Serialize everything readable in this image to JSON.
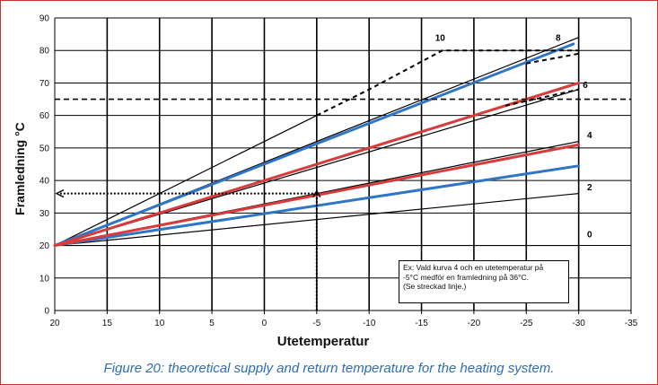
{
  "chart_data": {
    "type": "line",
    "xlabel": "Utetemperatur",
    "ylabel": "Framledning °C",
    "xlim": [
      20,
      -35
    ],
    "ylim": [
      0,
      90
    ],
    "x_ticks": [
      "20",
      "15",
      "10",
      "5",
      "0",
      "-5",
      "-10",
      "-15",
      "-20",
      "-25",
      "-30",
      "-35"
    ],
    "y_ticks": [
      "0",
      "10",
      "20",
      "30",
      "40",
      "50",
      "60",
      "70",
      "80",
      "90"
    ],
    "grid": true,
    "series": [
      {
        "name": "0",
        "color": "#000000",
        "width": 1.2,
        "x": [
          20,
          -30
        ],
        "y": [
          20,
          20
        ]
      },
      {
        "name": "2",
        "color": "#000000",
        "width": 1.2,
        "x": [
          20,
          -30
        ],
        "y": [
          20,
          36
        ]
      },
      {
        "name": "4",
        "color": "#000000",
        "width": 1.2,
        "x": [
          20,
          -30
        ],
        "y": [
          20,
          52
        ]
      },
      {
        "name": "6",
        "color": "#000000",
        "width": 1.2,
        "x": [
          20,
          -30
        ],
        "y": [
          20,
          68
        ]
      },
      {
        "name": "8",
        "color": "#000000",
        "width": 1.2,
        "x": [
          20,
          -30
        ],
        "y": [
          20,
          84
        ]
      },
      {
        "name": "10",
        "color": "#000000",
        "width": 1.2,
        "x": [
          20,
          -5
        ],
        "y": [
          20,
          60
        ]
      },
      {
        "name": "",
        "color": "#2e75c8",
        "width": 3,
        "x": [
          20,
          -30
        ],
        "y": [
          20,
          44.5
        ]
      },
      {
        "name": "",
        "color": "#2e75c8",
        "width": 3,
        "x": [
          20,
          -29.5
        ],
        "y": [
          20,
          82
        ]
      },
      {
        "name": "",
        "color": "#d93b3b",
        "width": 3,
        "x": [
          20,
          -30
        ],
        "y": [
          20,
          51
        ]
      },
      {
        "name": "",
        "color": "#d93b3b",
        "width": 3,
        "x": [
          20,
          -30
        ],
        "y": [
          20,
          70
        ]
      }
    ],
    "dashed_limit": {
      "y": 65
    },
    "dashed_curves": [
      {
        "x": [
          -5,
          -10,
          -17,
          -30
        ],
        "y": [
          60,
          68,
          80,
          80
        ]
      },
      {
        "x": [
          -23,
          -30
        ],
        "y": [
          63,
          68
        ]
      },
      {
        "x": [
          -25,
          -30
        ],
        "y": [
          76,
          79
        ]
      }
    ],
    "curve_labels": [
      {
        "text": "10",
        "x": -16.3,
        "y": 83
      },
      {
        "text": "8",
        "x": -27.8,
        "y": 83
      },
      {
        "text": "6",
        "x": -30.4,
        "y": 68.5
      },
      {
        "text": "4",
        "x": -30.8,
        "y": 53
      },
      {
        "text": "2",
        "x": -30.8,
        "y": 37
      },
      {
        "text": "0",
        "x": -30.8,
        "y": 22.5
      }
    ],
    "example": {
      "outdoor_temp": -5,
      "supply_temp": 36
    },
    "annotation": [
      "Ex: Vald kurva 4 och en utetemperatur på",
      "-5°C medför en framledning på 36°C.",
      "(Se streckad linje.)"
    ]
  },
  "caption": "Figure 20: theoretical supply and return temperature for the heating system."
}
